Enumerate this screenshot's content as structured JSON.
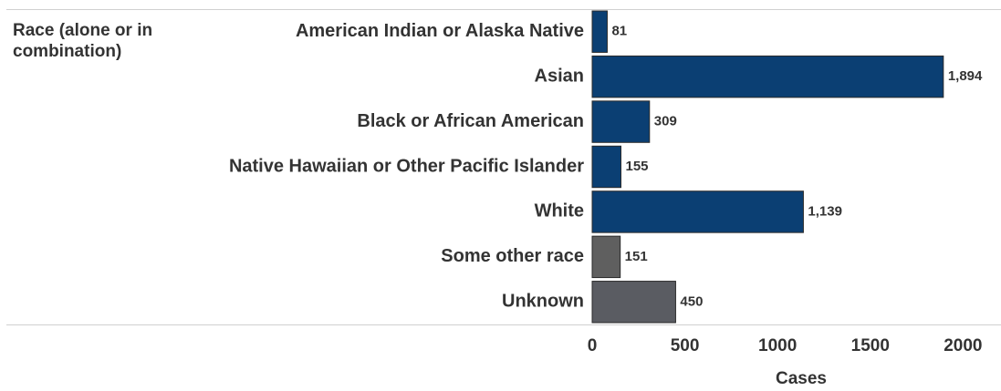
{
  "chart_data": {
    "type": "bar",
    "orientation": "horizontal",
    "row_header": "Race (alone or in combination)",
    "categories": [
      "American Indian or Alaska Native",
      "Asian",
      "Black or African American",
      "Native Hawaiian or Other Pacific Islander",
      "White",
      "Some other race",
      "Unknown"
    ],
    "values": [
      81,
      1894,
      309,
      155,
      1139,
      151,
      450
    ],
    "value_labels": [
      "81",
      "1,894",
      "309",
      "155",
      "1,139",
      "151",
      "450"
    ],
    "colors": [
      "#0b3f73",
      "#0b3f73",
      "#0b3f73",
      "#0b3f73",
      "#0b3f73",
      "#5f5f5f",
      "#5a5c62"
    ],
    "xlim": [
      0,
      2200
    ],
    "xticks": [
      0,
      500,
      1000,
      1500,
      2000
    ],
    "xlabel": "Cases",
    "grid": false
  }
}
